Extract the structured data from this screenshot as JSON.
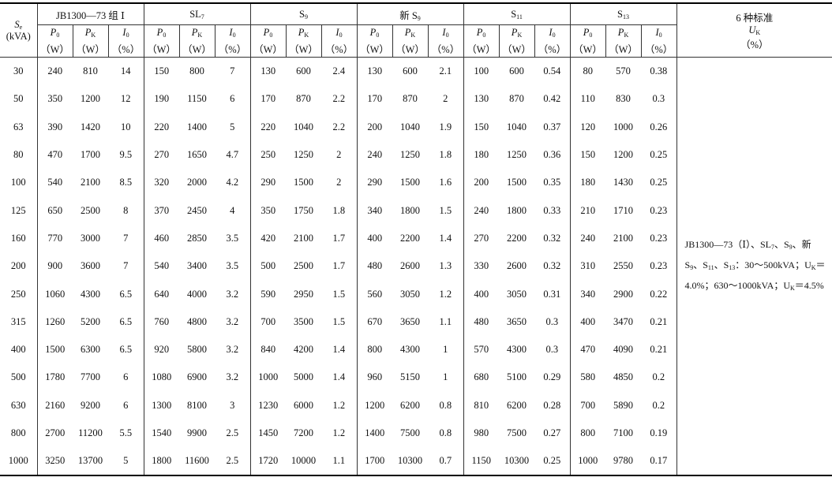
{
  "table": {
    "header": {
      "first": {
        "symbol": "S",
        "sub": "e",
        "unit": "(kVA)"
      },
      "groups": [
        {
          "text": "JB1300—73 组 Ⅰ"
        },
        {
          "text": "SL",
          "sub": "7"
        },
        {
          "text": "S",
          "sub": "9"
        },
        {
          "text": "新 S",
          "sub": "9"
        },
        {
          "text": "S",
          "sub": "11"
        },
        {
          "text": "S",
          "sub": "13"
        }
      ],
      "columns": [
        {
          "symbol": "P",
          "sub": "0",
          "unit": "（W）"
        },
        {
          "symbol": "P",
          "sub": "K",
          "unit": "（W）"
        },
        {
          "symbol": "I",
          "sub": "0",
          "unit": "（%）"
        }
      ],
      "last": {
        "title": "6 种标准",
        "symbol": "U",
        "sub": "K",
        "unit": "（%）"
      }
    },
    "rows": [
      {
        "se": 30,
        "values": [
          240,
          810,
          14,
          150,
          800,
          7,
          130,
          600,
          2.4,
          130,
          600,
          2.1,
          100,
          600,
          0.54,
          80,
          570,
          0.38
        ]
      },
      {
        "se": 50,
        "values": [
          350,
          1200,
          12,
          190,
          1150,
          6,
          170,
          870,
          2.2,
          170,
          870,
          2,
          130,
          870,
          0.42,
          110,
          830,
          0.3
        ]
      },
      {
        "se": 63,
        "values": [
          390,
          1420,
          10,
          220,
          1400,
          5,
          220,
          1040,
          2.2,
          200,
          1040,
          1.9,
          150,
          1040,
          0.37,
          120,
          1000,
          0.26
        ]
      },
      {
        "se": 80,
        "values": [
          470,
          1700,
          9.5,
          270,
          1650,
          4.7,
          250,
          1250,
          2,
          240,
          1250,
          1.8,
          180,
          1250,
          0.36,
          150,
          1200,
          0.25
        ]
      },
      {
        "se": 100,
        "values": [
          540,
          2100,
          8.5,
          320,
          2000,
          4.2,
          290,
          1500,
          2,
          290,
          1500,
          1.6,
          200,
          1500,
          0.35,
          180,
          1430,
          0.25
        ]
      },
      {
        "se": 125,
        "values": [
          650,
          2500,
          8,
          370,
          2450,
          4,
          350,
          1750,
          1.8,
          340,
          1800,
          1.5,
          240,
          1800,
          0.33,
          210,
          1710,
          0.23
        ]
      },
      {
        "se": 160,
        "values": [
          770,
          3000,
          7,
          460,
          2850,
          3.5,
          420,
          2100,
          1.7,
          400,
          2200,
          1.4,
          270,
          2200,
          0.32,
          240,
          2100,
          0.23
        ]
      },
      {
        "se": 200,
        "values": [
          900,
          3600,
          7,
          540,
          3400,
          3.5,
          500,
          2500,
          1.7,
          480,
          2600,
          1.3,
          330,
          2600,
          0.32,
          310,
          2550,
          0.23
        ]
      },
      {
        "se": 250,
        "values": [
          1060,
          4300,
          6.5,
          640,
          4000,
          3.2,
          590,
          2950,
          1.5,
          560,
          3050,
          1.2,
          400,
          3050,
          0.31,
          340,
          2900,
          0.22
        ]
      },
      {
        "se": 315,
        "values": [
          1260,
          5200,
          6.5,
          760,
          4800,
          3.2,
          700,
          3500,
          1.5,
          670,
          3650,
          1.1,
          480,
          3650,
          0.3,
          400,
          3470,
          0.21
        ]
      },
      {
        "se": 400,
        "values": [
          1500,
          6300,
          6.5,
          920,
          5800,
          3.2,
          840,
          4200,
          1.4,
          800,
          4300,
          1,
          570,
          4300,
          0.3,
          470,
          4090,
          0.21
        ]
      },
      {
        "se": 500,
        "values": [
          1780,
          7700,
          6,
          1080,
          6900,
          3.2,
          1000,
          5000,
          1.4,
          960,
          5150,
          1,
          680,
          5100,
          0.29,
          580,
          4850,
          0.2
        ]
      },
      {
        "se": 630,
        "values": [
          2160,
          9200,
          6,
          1300,
          8100,
          3,
          1230,
          6000,
          1.2,
          1200,
          6200,
          0.8,
          810,
          6200,
          0.28,
          700,
          5890,
          0.2
        ]
      },
      {
        "se": 800,
        "values": [
          2700,
          11200,
          5.5,
          1540,
          9900,
          2.5,
          1450,
          7200,
          1.2,
          1400,
          7500,
          0.8,
          980,
          7500,
          0.27,
          800,
          7100,
          0.19
        ]
      },
      {
        "se": 1000,
        "values": [
          3250,
          13700,
          5,
          1800,
          11600,
          2.5,
          1720,
          10000,
          1.1,
          1700,
          10300,
          0.7,
          1150,
          10300,
          0.25,
          1000,
          9780,
          0.17
        ]
      }
    ],
    "note": [
      {
        "text": "JB1300—73（Ⅰ）、SL"
      },
      {
        "sub": "7"
      },
      {
        "text": "、S"
      },
      {
        "sub": "9"
      },
      {
        "text": "、新 S"
      },
      {
        "sub": "9"
      },
      {
        "text": "、S"
      },
      {
        "sub": "11"
      },
      {
        "text": "、S"
      },
      {
        "sub": "13"
      },
      {
        "text": "：30～500kVA；U"
      },
      {
        "sub": "K"
      },
      {
        "text": "＝4.0%；630～1000kVA；U"
      },
      {
        "sub": "K"
      },
      {
        "text": "＝4.5%"
      }
    ]
  }
}
